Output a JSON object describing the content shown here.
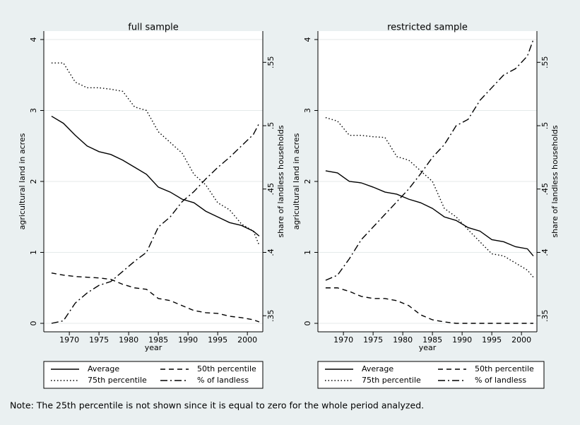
{
  "chart_data": [
    {
      "type": "line",
      "title": "full sample",
      "x_label": "year",
      "y_label": "agricultural land in acres",
      "y2_label": "share of landless households",
      "x": [
        1967,
        1969,
        1971,
        1973,
        1975,
        1977,
        1979,
        1981,
        1983,
        1985,
        1987,
        1989,
        1991,
        1993,
        1995,
        1997,
        1999,
        2001,
        2002
      ],
      "xlim": [
        1965.7,
        2002.6
      ],
      "xticks": [
        1970,
        1975,
        1980,
        1985,
        1990,
        1995,
        2000
      ],
      "ylim": [
        0,
        4
      ],
      "yticks": [
        0,
        1,
        2,
        3,
        4
      ],
      "y2lim": [
        0.344,
        0.568
      ],
      "y2ticks": [
        {
          "value": 0.35,
          "label": ".35"
        },
        {
          "value": 0.4,
          "label": ".4"
        },
        {
          "value": 0.45,
          "label": ".45"
        },
        {
          "value": 0.5,
          "label": ".5"
        },
        {
          "value": 0.55,
          "label": ".55"
        }
      ],
      "grid": true,
      "series": [
        {
          "name": "Average",
          "color": "#000000",
          "style": "solid",
          "values": [
            2.92,
            2.82,
            2.65,
            2.5,
            2.42,
            2.38,
            2.3,
            2.2,
            2.1,
            1.92,
            1.85,
            1.75,
            1.7,
            1.58,
            1.5,
            1.42,
            1.38,
            1.3,
            1.23
          ]
        },
        {
          "name": "50th percentile",
          "color": "#000000",
          "style": "dash",
          "values": [
            0.71,
            0.68,
            0.66,
            0.65,
            0.64,
            0.62,
            0.55,
            0.5,
            0.48,
            0.35,
            0.32,
            0.25,
            0.18,
            0.15,
            0.14,
            0.1,
            0.08,
            0.05,
            0.02
          ]
        },
        {
          "name": "75th percentile",
          "color": "#000000",
          "style": "dot",
          "values": [
            3.67,
            3.67,
            3.4,
            3.32,
            3.32,
            3.3,
            3.27,
            3.05,
            3.0,
            2.7,
            2.55,
            2.4,
            2.1,
            1.95,
            1.7,
            1.6,
            1.4,
            1.3,
            1.1
          ]
        },
        {
          "name": "% of landless",
          "color": "#000000",
          "style": "dashdot",
          "axis": "y2",
          "values": [
            0.344,
            0.346,
            0.36,
            0.368,
            0.374,
            0.377,
            0.385,
            0.393,
            0.4,
            0.42,
            0.428,
            0.44,
            0.448,
            0.458,
            0.467,
            0.475,
            0.484,
            0.493,
            0.502
          ]
        }
      ]
    },
    {
      "type": "line",
      "title": "restricted sample",
      "x_label": "year",
      "y_label": "agricultural land in acres",
      "y2_label": "share of landless households",
      "x": [
        1967,
        1969,
        1971,
        1973,
        1975,
        1977,
        1979,
        1981,
        1983,
        1985,
        1987,
        1989,
        1991,
        1993,
        1995,
        1997,
        1999,
        2001,
        2002
      ],
      "xlim": [
        1965.7,
        2002.6
      ],
      "xticks": [
        1970,
        1975,
        1980,
        1985,
        1990,
        1995,
        2000
      ],
      "ylim": [
        0,
        4
      ],
      "yticks": [
        0,
        1,
        2,
        3,
        4
      ],
      "y2lim": [
        0.344,
        0.568
      ],
      "y2ticks": [
        {
          "value": 0.35,
          "label": ".35"
        },
        {
          "value": 0.4,
          "label": ".4"
        },
        {
          "value": 0.45,
          "label": ".45"
        },
        {
          "value": 0.5,
          "label": ".5"
        },
        {
          "value": 0.55,
          "label": ".55"
        }
      ],
      "grid": true,
      "series": [
        {
          "name": "Average",
          "color": "#000000",
          "style": "solid",
          "values": [
            2.15,
            2.12,
            2.0,
            1.98,
            1.92,
            1.85,
            1.82,
            1.75,
            1.7,
            1.62,
            1.5,
            1.45,
            1.35,
            1.3,
            1.18,
            1.15,
            1.08,
            1.05,
            0.95
          ]
        },
        {
          "name": "50th percentile",
          "color": "#000000",
          "style": "dash",
          "values": [
            0.5,
            0.5,
            0.45,
            0.38,
            0.35,
            0.35,
            0.32,
            0.25,
            0.12,
            0.05,
            0.02,
            0,
            0,
            0,
            0,
            0,
            0,
            0,
            0
          ]
        },
        {
          "name": "75th percentile",
          "color": "#000000",
          "style": "dot",
          "values": [
            2.9,
            2.85,
            2.65,
            2.65,
            2.63,
            2.62,
            2.35,
            2.3,
            2.15,
            2.0,
            1.62,
            1.5,
            1.32,
            1.15,
            0.98,
            0.95,
            0.85,
            0.75,
            0.65
          ]
        },
        {
          "name": "% of landless",
          "color": "#000000",
          "style": "dashdot",
          "axis": "y2",
          "values": [
            0.378,
            0.382,
            0.395,
            0.41,
            0.42,
            0.43,
            0.44,
            0.45,
            0.462,
            0.475,
            0.485,
            0.5,
            0.505,
            0.52,
            0.53,
            0.54,
            0.545,
            0.555,
            0.568
          ]
        }
      ]
    }
  ],
  "note": "Note: The 25th percentile is not shown since it is equal to zero for the whole period analyzed."
}
